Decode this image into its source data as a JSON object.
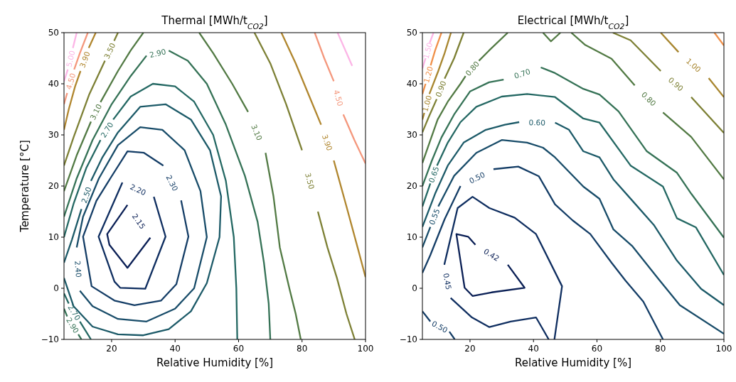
{
  "chart_data": [
    {
      "type": "line",
      "title": "Thermal [MWh/t$_{CO2}$]",
      "xlabel": "Relative Humidity [%]",
      "ylabel": "Temperature [°C]",
      "xlim": [
        5,
        100
      ],
      "ylim": [
        -10,
        50
      ],
      "xticks": [
        20,
        40,
        60,
        80,
        100
      ],
      "yticks": [
        {
          "value": -10,
          "label": "−10"
        },
        0,
        10,
        20,
        30,
        40,
        50
      ],
      "series": [
        {
          "name": "2.15",
          "color": "#0a1f55",
          "x": [
            25,
            18.6,
            19.3,
            25,
            32.2
          ],
          "values": [
            16.3,
            10.6,
            8.5,
            4,
            9.9
          ]
        },
        {
          "name": "2.20",
          "color": "#0f2e60",
          "x": [
            23.4,
            15.9,
            20.9,
            22.7,
            30.6,
            37,
            33.3
          ],
          "values": [
            20.7,
            10.1,
            1.3,
            0.1,
            -0.1,
            10.1,
            17.9
          ]
        },
        {
          "name": "2.30",
          "color": "#143d66",
          "x": [
            41.9,
            44.2,
            40.4,
            35.6,
            27.2,
            20.9,
            13.7,
            11,
            15.2,
            19.8,
            25,
            30.2,
            36.3
          ],
          "values": [
            17.2,
            10.1,
            0.8,
            -2.4,
            -3.3,
            -2.4,
            0.4,
            10.1,
            17.1,
            21.7,
            26.8,
            26.5,
            24
          ]
        },
        {
          "name": "2.40",
          "color": "#184c69",
          "x": [
            10,
            14,
            22,
            31,
            40,
            46,
            50,
            48,
            43,
            36,
            29,
            22,
            16,
            11,
            9
          ],
          "values": [
            -0.5,
            -3.5,
            -6,
            -6.5,
            -4,
            0,
            10,
            19,
            27,
            31,
            31.5,
            28,
            21.5,
            14,
            8
          ]
        },
        {
          "name": "2.50",
          "color": "#1c5a68",
          "x": [
            5,
            8,
            14,
            22,
            30,
            38,
            45,
            50,
            54,
            54.5,
            51,
            45,
            37,
            29,
            22,
            17,
            13.5,
            null,
            10.5,
            7.5,
            5
          ],
          "values": [
            2,
            -3.5,
            -7.5,
            -9,
            -9.2,
            -8,
            -4.5,
            1,
            10,
            18,
            27,
            33,
            36,
            35.5,
            30.5,
            25.5,
            21,
            null,
            15.5,
            9.5,
            5
          ]
        },
        {
          "name": "2.70",
          "color": "#246863",
          "x": [
            5,
            6.5,
            null,
            10,
            13.5
          ],
          "values": [
            -1,
            -3,
            null,
            -6.5,
            -10
          ]
        },
        {
          "name": "2.70",
          "color": "#246863",
          "x": [
            5,
            8,
            12,
            16.5,
            null,
            20.5,
            26,
            33,
            40,
            46,
            52,
            56,
            58.5,
            59.3,
            59.6
          ],
          "values": [
            10,
            16.5,
            23.5,
            29,
            null,
            33,
            37.5,
            40,
            39.5,
            36.5,
            30,
            21,
            10,
            0,
            -10
          ]
        },
        {
          "name": "2.90",
          "color": "#357256",
          "x": [
            5,
            6,
            null,
            9.5,
            10.5
          ],
          "values": [
            -4,
            -5.5,
            null,
            -9,
            -10
          ]
        },
        {
          "name": "2.90",
          "color": "#357256",
          "x": [
            5,
            9,
            14,
            20,
            26,
            31,
            null,
            38,
            44,
            50,
            56,
            62,
            66,
            68,
            69.5,
            70
          ],
          "values": [
            14,
            21.5,
            29,
            36,
            41.5,
            45.5,
            null,
            46.5,
            44.5,
            40,
            32,
            22,
            13,
            5,
            -3,
            -10
          ]
        },
        {
          "name": "3.10",
          "color": "#527a44",
          "x": [
            5,
            9,
            13.5,
            null,
            16.5,
            22,
            26,
            30
          ],
          "values": [
            19,
            26,
            32.6,
            null,
            36.4,
            42.5,
            46.5,
            50
          ]
        },
        {
          "name": "3.10",
          "color": "#527a44",
          "x": [
            47.6,
            52,
            58,
            63,
            null,
            68.5,
            71,
            73,
            76,
            78,
            79.6
          ],
          "values": [
            50,
            46,
            40,
            34.5,
            null,
            26.5,
            18,
            8,
            0,
            -5,
            -10
          ]
        },
        {
          "name": "3.50",
          "color": "#7d8035",
          "x": [
            5,
            8,
            13,
            17.9,
            null,
            20.8,
            22
          ],
          "values": [
            24,
            29.5,
            38,
            44.5,
            null,
            48.4,
            50
          ]
        },
        {
          "name": "3.50",
          "color": "#7d8035",
          "x": [
            65,
            70,
            75,
            80,
            null,
            85,
            88,
            91,
            94,
            96.6
          ],
          "values": [
            50,
            44,
            36,
            27,
            null,
            15,
            8,
            2,
            -5,
            -10
          ]
        },
        {
          "name": "3.90",
          "color": "#b0862e",
          "x": [
            5,
            6.5,
            8.5,
            10.2,
            null,
            12.8,
            15
          ],
          "values": [
            31,
            35,
            39.5,
            42.5,
            null,
            47,
            50
          ]
        },
        {
          "name": "3.90",
          "color": "#b0862e",
          "x": [
            73.5,
            78,
            83,
            86,
            null,
            90,
            94,
            97.5,
            100
          ],
          "values": [
            50,
            44,
            36.5,
            32,
            null,
            25,
            16,
            8,
            2.2
          ]
        },
        {
          "name": "4.50",
          "color": "#f4977c",
          "x": [
            5,
            6,
            null,
            8.2,
            10,
            12.5
          ],
          "values": [
            36,
            38.2,
            null,
            42.8,
            46,
            50
          ]
        },
        {
          "name": "4.50",
          "color": "#f4977c",
          "x": [
            84,
            87,
            90,
            null,
            93,
            96.5,
            100
          ],
          "values": [
            50,
            45,
            40.5,
            null,
            34,
            29,
            24.4
          ]
        },
        {
          "name": "5.00",
          "color": "#fcb5e6",
          "x": [
            5,
            6.2,
            null,
            7.8,
            9
          ],
          "values": [
            40.5,
            42.8,
            null,
            47,
            50
          ]
        },
        {
          "color": "#fcb5e6",
          "x": [
            91.2,
            95.8
          ],
          "values": [
            50,
            43.5
          ]
        }
      ]
    },
    {
      "type": "line",
      "title": "Electrical [MWh/t$_{CO2}$]",
      "xlabel": "Relative Humidity [%]",
      "xlim": [
        5,
        100
      ],
      "ylim": [
        -10,
        50
      ],
      "xticks": [
        20,
        40,
        60,
        80,
        100
      ],
      "yticks": [
        {
          "value": -10,
          "label": "−10"
        },
        0,
        10,
        20,
        30,
        40,
        50
      ],
      "series": [
        {
          "name": "0.42",
          "color": "#0a1f55",
          "x": [
            31.9,
            37.2,
            26.8,
            20.8,
            18.3,
            15.7,
            19.4,
            21.7
          ],
          "values": [
            4.6,
            0.1,
            -0.8,
            -1.5,
            0.1,
            10.6,
            10.1,
            8.5
          ]
        },
        {
          "name": "0.45",
          "color": "#0f2e60",
          "x": [
            46.6,
            49,
            40.8,
            34.1,
            26.1,
            20.8,
            16.1,
            11.9,
            null,
            13.9,
            20.6,
            26.1,
            32.8,
            40.8,
            44.8
          ],
          "values": [
            -10,
            0.4,
            10.6,
            13.8,
            15.7,
            17.9,
            15.7,
            4.6,
            null,
            -1.9,
            -5.7,
            -7.6,
            -6.5,
            -5.7,
            -10
          ]
        },
        {
          "name": "0.50",
          "color": "#143d66",
          "x": [
            5,
            7.5,
            null,
            13.5,
            15.2
          ],
          "values": [
            -4.5,
            -6.5,
            null,
            -8.5,
            -10
          ]
        },
        {
          "name": "0.50",
          "color": "#143d66",
          "x": [
            5,
            7.5,
            12,
            17,
            null,
            27.4,
            35.2,
            41.7,
            46.8,
            52.3,
            57.9,
            64.6,
            69,
            74.6,
            80.8
          ],
          "values": [
            3,
            6.5,
            13.5,
            20,
            null,
            23.3,
            23.8,
            21.9,
            16.4,
            13.3,
            10.6,
            5,
            1.5,
            -2.6,
            -10
          ]
        },
        {
          "name": "0.55",
          "color": "#184c69",
          "x": [
            5,
            7.5,
            null,
            10,
            15,
            22,
            30,
            38,
            43,
            46.8,
            55.7,
            60.8,
            65.2,
            71.2,
            79.4,
            86.1,
            100
          ],
          "values": [
            8,
            12,
            null,
            16,
            22,
            26.5,
            29,
            28.5,
            27.5,
            25.6,
            19.9,
            17.5,
            11.5,
            8.2,
            1.8,
            -3.3,
            -8.9
          ]
        },
        {
          "name": "0.60",
          "color": "#1c5a68",
          "x": [
            5,
            9,
            13,
            18,
            25,
            31,
            35.5,
            null,
            46.8,
            51.2,
            55.7,
            60.8,
            65.2,
            71.2,
            77.9,
            85.2,
            92.8,
            100
          ],
          "values": [
            12,
            18.5,
            24,
            28.5,
            31,
            32,
            32.5,
            null,
            32.4,
            31,
            26.8,
            25.6,
            21.3,
            17.1,
            12.4,
            5.4,
            -0.1,
            -3.3
          ]
        },
        {
          "name": "0.65",
          "color": "#246863",
          "x": [
            5,
            7.5,
            null,
            9.6,
            13,
            17,
            22,
            30,
            38,
            46.8,
            55.7,
            60.8,
            70.6,
            80.8,
            85.2,
            91.2,
            100
          ],
          "values": [
            16,
            20.5,
            null,
            24,
            28.5,
            32.5,
            35.5,
            37.5,
            38,
            37.4,
            33.2,
            32.4,
            24,
            19.9,
            13.7,
            11.9,
            2.6
          ]
        },
        {
          "name": "0.70",
          "color": "#357256",
          "x": [
            5,
            8,
            11,
            15,
            20,
            26,
            30.6,
            null,
            42.3,
            46.8,
            55.7,
            60.8,
            66.8,
            75.7,
            85.2,
            89.7,
            100
          ],
          "values": [
            20,
            25,
            29.5,
            34,
            38.5,
            40.3,
            40.8,
            null,
            43.2,
            42.1,
            39,
            37.9,
            34.6,
            26.8,
            22.6,
            18.5,
            9.9
          ]
        },
        {
          "name": "0.80",
          "color": "#527a44",
          "x": [
            5,
            7.3,
            9.8,
            13,
            17,
            18.6,
            null,
            22.8,
            26,
            31.9
          ],
          "values": [
            24.5,
            28.6,
            33,
            36.5,
            40,
            41.5,
            null,
            44.5,
            46.5,
            50
          ]
        },
        {
          "color": "#527a44",
          "x": [
            43,
            45.5,
            48.5
          ],
          "values": [
            50,
            48.3,
            50
          ]
        },
        {
          "name": "0.80",
          "color": "#527a44",
          "x": [
            51.9,
            56.3,
            64.6,
            71.9,
            null,
            80.8,
            89.7,
            100
          ],
          "values": [
            50,
            47.6,
            44.9,
            39.7,
            null,
            34.4,
            29.6,
            21.3
          ]
        },
        {
          "name": "0.90",
          "color": "#7d8035",
          "x": [
            5,
            7,
            9.5,
            null,
            12,
            15,
            18
          ],
          "values": [
            30.5,
            33.5,
            37,
            null,
            41,
            45,
            50
          ]
        },
        {
          "name": "0.90",
          "color": "#7d8035",
          "x": [
            65,
            70.6,
            80.1,
            null,
            89.7,
            100
          ],
          "values": [
            50,
            48.5,
            42.5,
            null,
            37.4,
            30.4
          ]
        },
        {
          "name": "1.00",
          "color": "#a8862f",
          "x": [
            5,
            5.6,
            null,
            7.2,
            10,
            12,
            14
          ],
          "values": [
            33,
            34.3,
            null,
            38,
            42.5,
            46,
            50
          ]
        },
        {
          "name": "1.00",
          "color": "#a8862f",
          "x": [
            80.1,
            85.7,
            null,
            95.2,
            100
          ],
          "values": [
            50,
            46.2,
            null,
            41.1,
            37.4
          ]
        },
        {
          "name": "1.20",
          "color": "#f0904a",
          "x": [
            5,
            6,
            null,
            7.6,
            9,
            11
          ],
          "values": [
            38,
            40,
            null,
            43.6,
            46.5,
            50
          ]
        },
        {
          "color": "#f0904a",
          "x": [
            97,
            100
          ],
          "values": [
            50,
            47.5
          ]
        },
        {
          "name": "1.50",
          "color": "#fcb5e6",
          "x": [
            5,
            6,
            null,
            7.3,
            8.5
          ],
          "values": [
            43,
            45,
            null,
            48,
            50
          ]
        }
      ]
    }
  ]
}
